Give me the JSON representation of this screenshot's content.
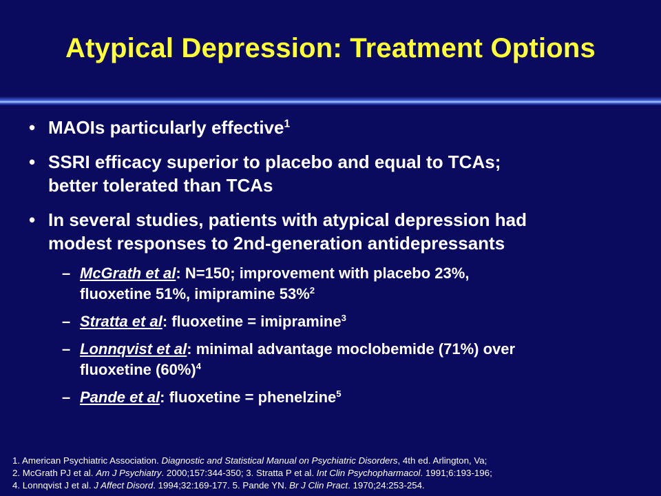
{
  "slide": {
    "title": "Atypical Depression: Treatment Options"
  },
  "bullets": [
    {
      "text": "MAOIs particularly effective",
      "sup": "1"
    },
    {
      "text_line1": "SSRI efficacy superior to placebo and equal to TCAs;",
      "text_line2": "better tolerated than TCAs"
    },
    {
      "text_line1": "In several studies, patients with atypical depression had",
      "text_line2": "modest responses to 2nd-generation antidepressants"
    }
  ],
  "sub_bullets": [
    {
      "author": "McGrath et al",
      "line1": ": N=150; improvement with placebo 23%,",
      "line2": "fluoxetine 51%, imipramine 53%",
      "sup": "2"
    },
    {
      "author": "Stratta et al",
      "line1": ": fluoxetine = imipramine",
      "sup": "3"
    },
    {
      "author": "Lonnqvist et al",
      "line1": ": minimal advantage moclobemide (71%) over",
      "line2": "fluoxetine (60%)",
      "sup": "4"
    },
    {
      "author": "Pande et al",
      "line1": ": fluoxetine = phenelzine",
      "sup": "5"
    }
  ],
  "references": {
    "r1a": "1. American Psychiatric Association.  ",
    "r1b": "Diagnostic and Statistical Manual on Psychiatric Disorders",
    "r1c": ", 4th ed.  Arlington, Va;",
    "r2a": "2. McGrath PJ et al. ",
    "r2b": "Am J Psychiatry",
    "r2c": ". 2000;157:344-350;  3. Stratta P et al. ",
    "r2d": "Int Clin Psychopharmacol",
    "r2e": ". 1991;6:193-196;",
    "r3a": "4. Lonnqvist J et al. ",
    "r3b": "J Affect Disord",
    "r3c": ". 1994;32:169-177.  5. Pande YN. ",
    "r3d": "Br J Clin Pract",
    "r3e": ". 1970;24:253-254."
  },
  "colors": {
    "background": "#0a0a5e",
    "title": "#ffff33",
    "text": "#ffffff"
  }
}
